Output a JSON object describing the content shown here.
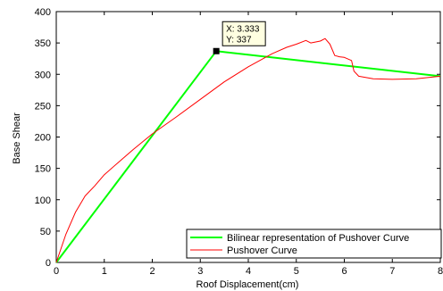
{
  "chart_data": {
    "type": "line",
    "title": "",
    "xlabel": "Roof Displacement(cm)",
    "ylabel": "Base Shear",
    "xlim": [
      0,
      8
    ],
    "ylim": [
      0,
      400
    ],
    "xticks": [
      "0",
      "1",
      "2",
      "3",
      "4",
      "5",
      "6",
      "7",
      "8"
    ],
    "yticks": [
      "0",
      "50",
      "100",
      "150",
      "200",
      "250",
      "300",
      "350",
      "400"
    ],
    "grid": false,
    "legend_position": "bottom-right",
    "series": [
      {
        "name": "Bilinear representation of Pushover Curve",
        "color": "#00ff00",
        "x": [
          0,
          3.333,
          8
        ],
        "y": [
          0,
          337,
          297
        ]
      },
      {
        "name": "Pushover Curve",
        "color": "#ff0000",
        "x": [
          0,
          0.2,
          0.4,
          0.6,
          0.8,
          1.0,
          1.3,
          1.6,
          2.0,
          2.5,
          3.0,
          3.5,
          4.0,
          4.5,
          4.8,
          5.0,
          5.2,
          5.3,
          5.5,
          5.6,
          5.7,
          5.8,
          5.9,
          6.0,
          6.15,
          6.2,
          6.3,
          6.6,
          7.0,
          7.5,
          8.0
        ],
        "y": [
          0,
          45,
          80,
          106,
          122,
          140,
          160,
          180,
          205,
          232,
          260,
          288,
          312,
          333,
          343,
          348,
          354,
          350,
          353,
          357,
          348,
          330,
          328,
          327,
          322,
          305,
          297,
          293,
          292,
          293,
          297
        ]
      }
    ],
    "datatip": {
      "x_label": "X: 3.333",
      "y_label": "Y: 337",
      "x": 3.333,
      "y": 337
    }
  }
}
